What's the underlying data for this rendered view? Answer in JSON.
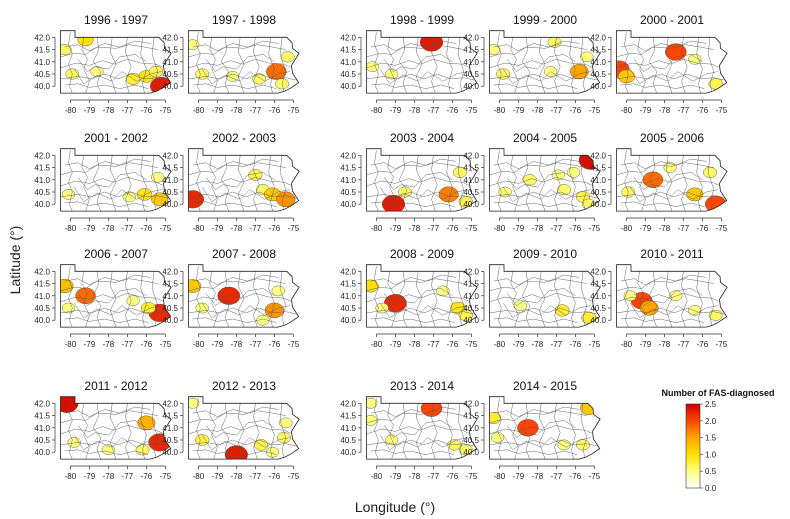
{
  "figure": {
    "xlabel": "Longitude (°)",
    "ylabel": "Latitude (°)"
  },
  "chart_data": {
    "type": "heatmap",
    "map_region": "Pennsylvania counties",
    "xlabel": "Longitude (°)",
    "ylabel": "Latitude (°)",
    "xlim": [
      -80.6,
      -74.6
    ],
    "ylim": [
      39.6,
      42.3
    ],
    "x_ticks": [
      -80,
      -79,
      -78,
      -77,
      -76,
      -75
    ],
    "x_tick_labels": [
      "-80",
      "-79",
      "-78",
      "-77",
      "-76",
      "-75"
    ],
    "y_ticks": [
      40.0,
      40.5,
      41.0,
      41.5,
      42.0
    ],
    "y_tick_labels": [
      "40.0",
      "40.5",
      "41.0",
      "41.5",
      "42.0"
    ],
    "legend": {
      "title": "Number of FAS-diagnosed",
      "min": 0,
      "max": 2.5,
      "ticks": [
        "0.0",
        "0.5",
        "1.0",
        "1.5",
        "2.0",
        "2.5"
      ],
      "colors": [
        "#ffffff",
        "#ffff80",
        "#ffe000",
        "#ffa500",
        "#ff4500",
        "#cc0000"
      ]
    },
    "panels": [
      {
        "title": "1996 - 1997",
        "hotspots": [
          {
            "lon": -79.2,
            "lat": 41.9,
            "value": 1.0
          },
          {
            "lon": -80.3,
            "lat": 41.5,
            "value": 0.6
          },
          {
            "lon": -79.9,
            "lat": 40.5,
            "value": 0.6
          },
          {
            "lon": -78.6,
            "lat": 40.6,
            "value": 0.5
          },
          {
            "lon": -76.7,
            "lat": 40.3,
            "value": 0.8
          },
          {
            "lon": -76.0,
            "lat": 40.4,
            "value": 0.9
          },
          {
            "lon": -75.5,
            "lat": 40.6,
            "value": 0.7
          },
          {
            "lon": -75.2,
            "lat": 40.0,
            "value": 2.3
          }
        ]
      },
      {
        "title": "1997 - 1998",
        "hotspots": [
          {
            "lon": -80.3,
            "lat": 41.7,
            "value": 0.5
          },
          {
            "lon": -79.8,
            "lat": 40.5,
            "value": 0.6
          },
          {
            "lon": -78.2,
            "lat": 40.4,
            "value": 0.5
          },
          {
            "lon": -76.8,
            "lat": 40.3,
            "value": 0.6
          },
          {
            "lon": -75.9,
            "lat": 40.6,
            "value": 1.8
          },
          {
            "lon": -75.3,
            "lat": 41.2,
            "value": 0.6
          },
          {
            "lon": -75.6,
            "lat": 40.1,
            "value": 0.6
          }
        ]
      },
      {
        "title": "1998 - 1999",
        "hotspots": [
          {
            "lon": -77.1,
            "lat": 41.8,
            "value": 2.3
          },
          {
            "lon": -80.2,
            "lat": 40.8,
            "value": 0.5
          },
          {
            "lon": -79.2,
            "lat": 40.5,
            "value": 0.5
          }
        ]
      },
      {
        "title": "1999 - 2000",
        "hotspots": [
          {
            "lon": -77.1,
            "lat": 41.8,
            "value": 0.6
          },
          {
            "lon": -80.3,
            "lat": 41.5,
            "value": 0.5
          },
          {
            "lon": -79.8,
            "lat": 40.5,
            "value": 0.6
          },
          {
            "lon": -77.3,
            "lat": 40.6,
            "value": 0.5
          },
          {
            "lon": -75.8,
            "lat": 40.6,
            "value": 1.5
          },
          {
            "lon": -75.4,
            "lat": 41.2,
            "value": 0.5
          }
        ]
      },
      {
        "title": "2000 - 2001",
        "hotspots": [
          {
            "lon": -80.4,
            "lat": 40.7,
            "value": 2.0
          },
          {
            "lon": -80.0,
            "lat": 40.4,
            "value": 1.2
          },
          {
            "lon": -77.4,
            "lat": 41.4,
            "value": 2.0
          },
          {
            "lon": -76.4,
            "lat": 41.1,
            "value": 0.5
          },
          {
            "lon": -75.3,
            "lat": 40.1,
            "value": 0.7
          }
        ]
      },
      {
        "title": "2001 - 2002",
        "hotspots": [
          {
            "lon": -80.1,
            "lat": 40.4,
            "value": 0.5
          },
          {
            "lon": -76.9,
            "lat": 40.3,
            "value": 0.5
          },
          {
            "lon": -76.1,
            "lat": 40.4,
            "value": 0.9
          },
          {
            "lon": -75.3,
            "lat": 40.2,
            "value": 1.2
          },
          {
            "lon": -75.4,
            "lat": 41.1,
            "value": 0.5
          }
        ]
      },
      {
        "title": "2002 - 2003",
        "hotspots": [
          {
            "lon": -80.3,
            "lat": 40.2,
            "value": 2.2
          },
          {
            "lon": -77.0,
            "lat": 41.2,
            "value": 0.7
          },
          {
            "lon": -76.6,
            "lat": 40.6,
            "value": 0.6
          },
          {
            "lon": -76.1,
            "lat": 40.4,
            "value": 1.2
          },
          {
            "lon": -75.4,
            "lat": 40.2,
            "value": 1.6
          }
        ]
      },
      {
        "title": "2003 - 2004",
        "hotspots": [
          {
            "lon": -79.1,
            "lat": 40.0,
            "value": 2.3
          },
          {
            "lon": -78.5,
            "lat": 40.5,
            "value": 0.6
          },
          {
            "lon": -76.2,
            "lat": 40.4,
            "value": 1.7
          },
          {
            "lon": -75.6,
            "lat": 41.3,
            "value": 0.6
          },
          {
            "lon": -75.3,
            "lat": 40.1,
            "value": 0.7
          }
        ]
      },
      {
        "title": "2004 - 2005",
        "hotspots": [
          {
            "lon": -75.2,
            "lat": 41.8,
            "value": 2.4
          },
          {
            "lon": -78.4,
            "lat": 41.0,
            "value": 0.6
          },
          {
            "lon": -79.7,
            "lat": 40.5,
            "value": 0.5
          },
          {
            "lon": -76.9,
            "lat": 41.2,
            "value": 0.5
          },
          {
            "lon": -76.1,
            "lat": 41.3,
            "value": 0.5
          },
          {
            "lon": -76.6,
            "lat": 40.6,
            "value": 0.6
          },
          {
            "lon": -75.6,
            "lat": 40.3,
            "value": 0.7
          },
          {
            "lon": -75.3,
            "lat": 40.0,
            "value": 0.6
          }
        ]
      },
      {
        "title": "2005 - 2006",
        "hotspots": [
          {
            "lon": -78.6,
            "lat": 41.0,
            "value": 1.8
          },
          {
            "lon": -79.9,
            "lat": 40.5,
            "value": 0.6
          },
          {
            "lon": -77.7,
            "lat": 41.5,
            "value": 0.5
          },
          {
            "lon": -76.4,
            "lat": 40.4,
            "value": 1.2
          },
          {
            "lon": -75.6,
            "lat": 41.3,
            "value": 0.6
          },
          {
            "lon": -75.3,
            "lat": 40.0,
            "value": 2.0
          }
        ]
      },
      {
        "title": "2006 - 2007",
        "hotspots": [
          {
            "lon": -80.3,
            "lat": 41.4,
            "value": 1.3
          },
          {
            "lon": -79.2,
            "lat": 41.0,
            "value": 1.8
          },
          {
            "lon": -80.1,
            "lat": 40.5,
            "value": 0.5
          },
          {
            "lon": -76.7,
            "lat": 40.8,
            "value": 0.5
          },
          {
            "lon": -75.3,
            "lat": 40.3,
            "value": 2.2
          },
          {
            "lon": -75.9,
            "lat": 40.5,
            "value": 0.8
          }
        ]
      },
      {
        "title": "2007 - 2008",
        "hotspots": [
          {
            "lon": -80.3,
            "lat": 41.4,
            "value": 1.2
          },
          {
            "lon": -78.4,
            "lat": 41.0,
            "value": 2.2
          },
          {
            "lon": -79.8,
            "lat": 40.5,
            "value": 0.5
          },
          {
            "lon": -76.0,
            "lat": 40.4,
            "value": 1.6
          },
          {
            "lon": -75.8,
            "lat": 41.2,
            "value": 0.5
          },
          {
            "lon": -76.6,
            "lat": 40.0,
            "value": 0.5
          }
        ]
      },
      {
        "title": "2008 - 2009",
        "hotspots": [
          {
            "lon": -80.3,
            "lat": 41.4,
            "value": 1.0
          },
          {
            "lon": -79.0,
            "lat": 40.7,
            "value": 2.2
          },
          {
            "lon": -79.7,
            "lat": 40.5,
            "value": 0.5
          },
          {
            "lon": -76.5,
            "lat": 41.2,
            "value": 0.5
          },
          {
            "lon": -75.7,
            "lat": 40.5,
            "value": 0.9
          },
          {
            "lon": -75.3,
            "lat": 40.2,
            "value": 0.7
          }
        ]
      },
      {
        "title": "2009 - 2010",
        "hotspots": [
          {
            "lon": -78.9,
            "lat": 40.6,
            "value": 0.5
          },
          {
            "lon": -76.7,
            "lat": 40.4,
            "value": 0.8
          },
          {
            "lon": -75.3,
            "lat": 40.1,
            "value": 0.8
          }
        ]
      },
      {
        "title": "2010 - 2011",
        "hotspots": [
          {
            "lon": -79.2,
            "lat": 40.8,
            "value": 2.0
          },
          {
            "lon": -78.8,
            "lat": 40.5,
            "value": 1.5
          },
          {
            "lon": -79.8,
            "lat": 41.0,
            "value": 0.5
          },
          {
            "lon": -77.4,
            "lat": 41.0,
            "value": 0.5
          },
          {
            "lon": -76.4,
            "lat": 40.4,
            "value": 0.5
          },
          {
            "lon": -75.3,
            "lat": 40.2,
            "value": 0.6
          }
        ]
      },
      {
        "title": "2011 - 2012",
        "hotspots": [
          {
            "lon": -80.2,
            "lat": 42.0,
            "value": 2.4
          },
          {
            "lon": -79.8,
            "lat": 40.4,
            "value": 0.5
          },
          {
            "lon": -78.0,
            "lat": 40.1,
            "value": 0.5
          },
          {
            "lon": -76.0,
            "lat": 41.2,
            "value": 1.4
          },
          {
            "lon": -75.3,
            "lat": 40.4,
            "value": 2.2
          },
          {
            "lon": -76.2,
            "lat": 40.1,
            "value": 0.6
          }
        ]
      },
      {
        "title": "2012 - 2013",
        "hotspots": [
          {
            "lon": -80.3,
            "lat": 42.0,
            "value": 0.5
          },
          {
            "lon": -78.0,
            "lat": 39.9,
            "value": 2.3
          },
          {
            "lon": -79.8,
            "lat": 40.5,
            "value": 0.7
          },
          {
            "lon": -76.7,
            "lat": 40.3,
            "value": 0.7
          },
          {
            "lon": -76.1,
            "lat": 40.0,
            "value": 0.5
          },
          {
            "lon": -75.5,
            "lat": 40.6,
            "value": 0.6
          },
          {
            "lon": -75.4,
            "lat": 41.2,
            "value": 0.5
          }
        ]
      },
      {
        "title": "2013 - 2014",
        "hotspots": [
          {
            "lon": -77.1,
            "lat": 41.8,
            "value": 2.0
          },
          {
            "lon": -80.3,
            "lat": 42.0,
            "value": 0.5
          },
          {
            "lon": -80.3,
            "lat": 41.3,
            "value": 0.5
          },
          {
            "lon": -79.2,
            "lat": 40.5,
            "value": 0.5
          },
          {
            "lon": -75.9,
            "lat": 40.3,
            "value": 0.6
          },
          {
            "lon": -75.3,
            "lat": 40.1,
            "value": 0.6
          }
        ]
      },
      {
        "title": "2014 - 2015",
        "hotspots": [
          {
            "lon": -78.5,
            "lat": 41.0,
            "value": 2.0
          },
          {
            "lon": -80.3,
            "lat": 41.4,
            "value": 0.8
          },
          {
            "lon": -80.1,
            "lat": 40.6,
            "value": 0.5
          },
          {
            "lon": -75.3,
            "lat": 41.8,
            "value": 1.2
          },
          {
            "lon": -75.6,
            "lat": 40.3,
            "value": 0.6
          },
          {
            "lon": -76.6,
            "lat": 40.3,
            "value": 0.5
          }
        ]
      }
    ]
  }
}
